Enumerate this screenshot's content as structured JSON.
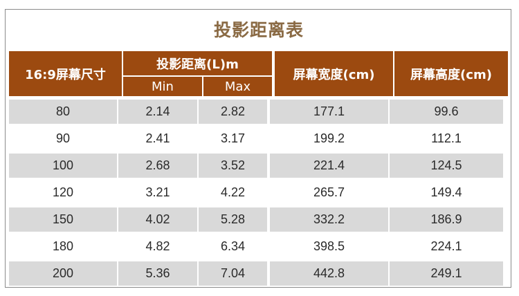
{
  "title": "投影距离表",
  "headers": {
    "screen_size": "16:9屏幕尺寸",
    "distance": "投影距离(L)m",
    "min": "Min",
    "max": "Max",
    "width": "屏幕宽度(cm)",
    "height": "屏幕高度(cm)"
  },
  "colors": {
    "header_bg": "#9c4a10",
    "title": "#8a6a44",
    "stripe": "#d9d9d9"
  },
  "rows": [
    {
      "size": "80",
      "min": "2.14",
      "max": "2.82",
      "width": "177.1",
      "height": "99.6"
    },
    {
      "size": "90",
      "min": "2.41",
      "max": "3.17",
      "width": "199.2",
      "height": "112.1"
    },
    {
      "size": "100",
      "min": "2.68",
      "max": "3.52",
      "width": "221.4",
      "height": "124.5"
    },
    {
      "size": "120",
      "min": "3.21",
      "max": "4.22",
      "width": "265.7",
      "height": "149.4"
    },
    {
      "size": "150",
      "min": "4.02",
      "max": "5.28",
      "width": "332.2",
      "height": "186.9"
    },
    {
      "size": "180",
      "min": "4.82",
      "max": "6.34",
      "width": "398.5",
      "height": "224.1"
    },
    {
      "size": "200",
      "min": "5.36",
      "max": "7.04",
      "width": "442.8",
      "height": "249.1"
    }
  ]
}
